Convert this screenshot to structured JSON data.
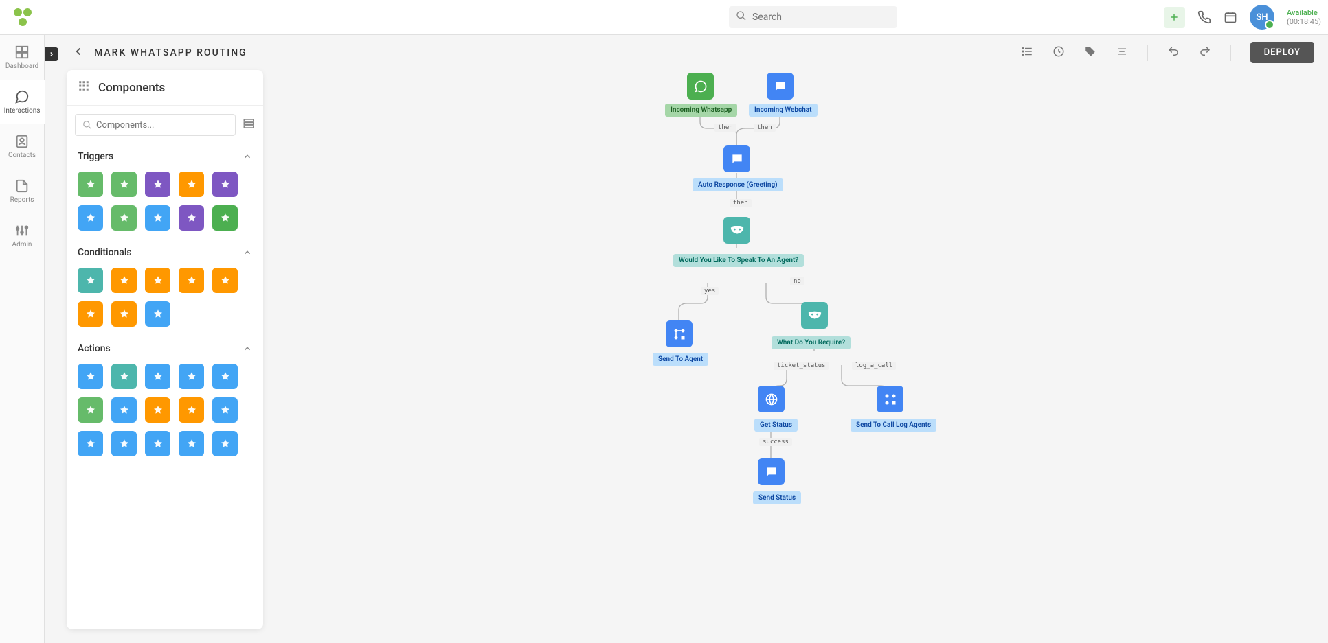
{
  "topbar": {
    "search_placeholder": "Search",
    "avatar_initials": "SH",
    "status_label": "Available",
    "status_time": "(00:18:45)"
  },
  "leftnav": {
    "items": [
      {
        "label": "Dashboard"
      },
      {
        "label": "Interactions"
      },
      {
        "label": "Contacts"
      },
      {
        "label": "Reports"
      },
      {
        "label": "Admin"
      }
    ]
  },
  "titlebar": {
    "page_title": "MARK WHATSAPP ROUTING",
    "deploy_label": "DEPLOY"
  },
  "panel": {
    "title": "Components",
    "search_placeholder": "Components...",
    "sections": {
      "triggers_label": "Triggers",
      "conditionals_label": "Conditionals",
      "actions_label": "Actions"
    },
    "tile_colors": {
      "green": "#66bb6a",
      "orange": "#ff9800",
      "purple": "#7e57c2",
      "blue": "#42a5f5",
      "dgreen": "#4caf50",
      "teal": "#4db6ac"
    },
    "triggers_tiles_colors": [
      "#66bb6a",
      "#66bb6a",
      "#7e57c2",
      "#ff9800",
      "#7e57c2",
      "#42a5f5",
      "#66bb6a",
      "#42a5f5",
      "#7e57c2",
      "#4caf50"
    ],
    "conditionals_tiles_colors": [
      "#4db6ac",
      "#ff9800",
      "#ff9800",
      "#ff9800",
      "#ff9800",
      "#ff9800",
      "#ff9800",
      "#42a5f5"
    ],
    "actions_tiles_colors": [
      "#42a5f5",
      "#4db6ac",
      "#42a5f5",
      "#42a5f5",
      "#42a5f5",
      "#66bb6a",
      "#42a5f5",
      "#ff9800",
      "#ff9800",
      "#42a5f5",
      "#42a5f5",
      "#42a5f5",
      "#42a5f5",
      "#42a5f5",
      "#42a5f5"
    ]
  },
  "canvas": {
    "node_colors": {
      "whatsapp_icon": "#4caf50",
      "chat_icon": "#4285f4",
      "mask_icon": "#4db6ac",
      "process_icon": "#4285f4",
      "globe_icon": "#4285f4"
    },
    "label_colors": {
      "green_label_bg": "#a5d6a7",
      "green_label_txt": "#1b5e20",
      "teal_label_bg": "#b2dfdb",
      "teal_label_txt": "#00695c",
      "blue_label_bg": "#bbdefb",
      "blue_label_txt": "#0d47a1"
    },
    "nodes": {
      "incoming_whatsapp_label": "Incoming Whatsapp",
      "incoming_webchat_label": "Incoming Webchat",
      "auto_response_label": "Auto Response (Greeting)",
      "speak_agent_label": "Would You Like To Speak To An Agent?",
      "send_to_agent_label": "Send To Agent",
      "what_require_label": "What Do You Require?",
      "get_status_label": "Get Status",
      "send_call_log_label": "Send To Call Log Agents",
      "send_status_label": "Send Status"
    },
    "edge_labels": {
      "then1": "then",
      "then2": "then",
      "then3": "then",
      "yes": "yes",
      "no": "no",
      "ticket_status": "ticket_status",
      "log_a_call": "log_a_call",
      "success": "success"
    }
  }
}
